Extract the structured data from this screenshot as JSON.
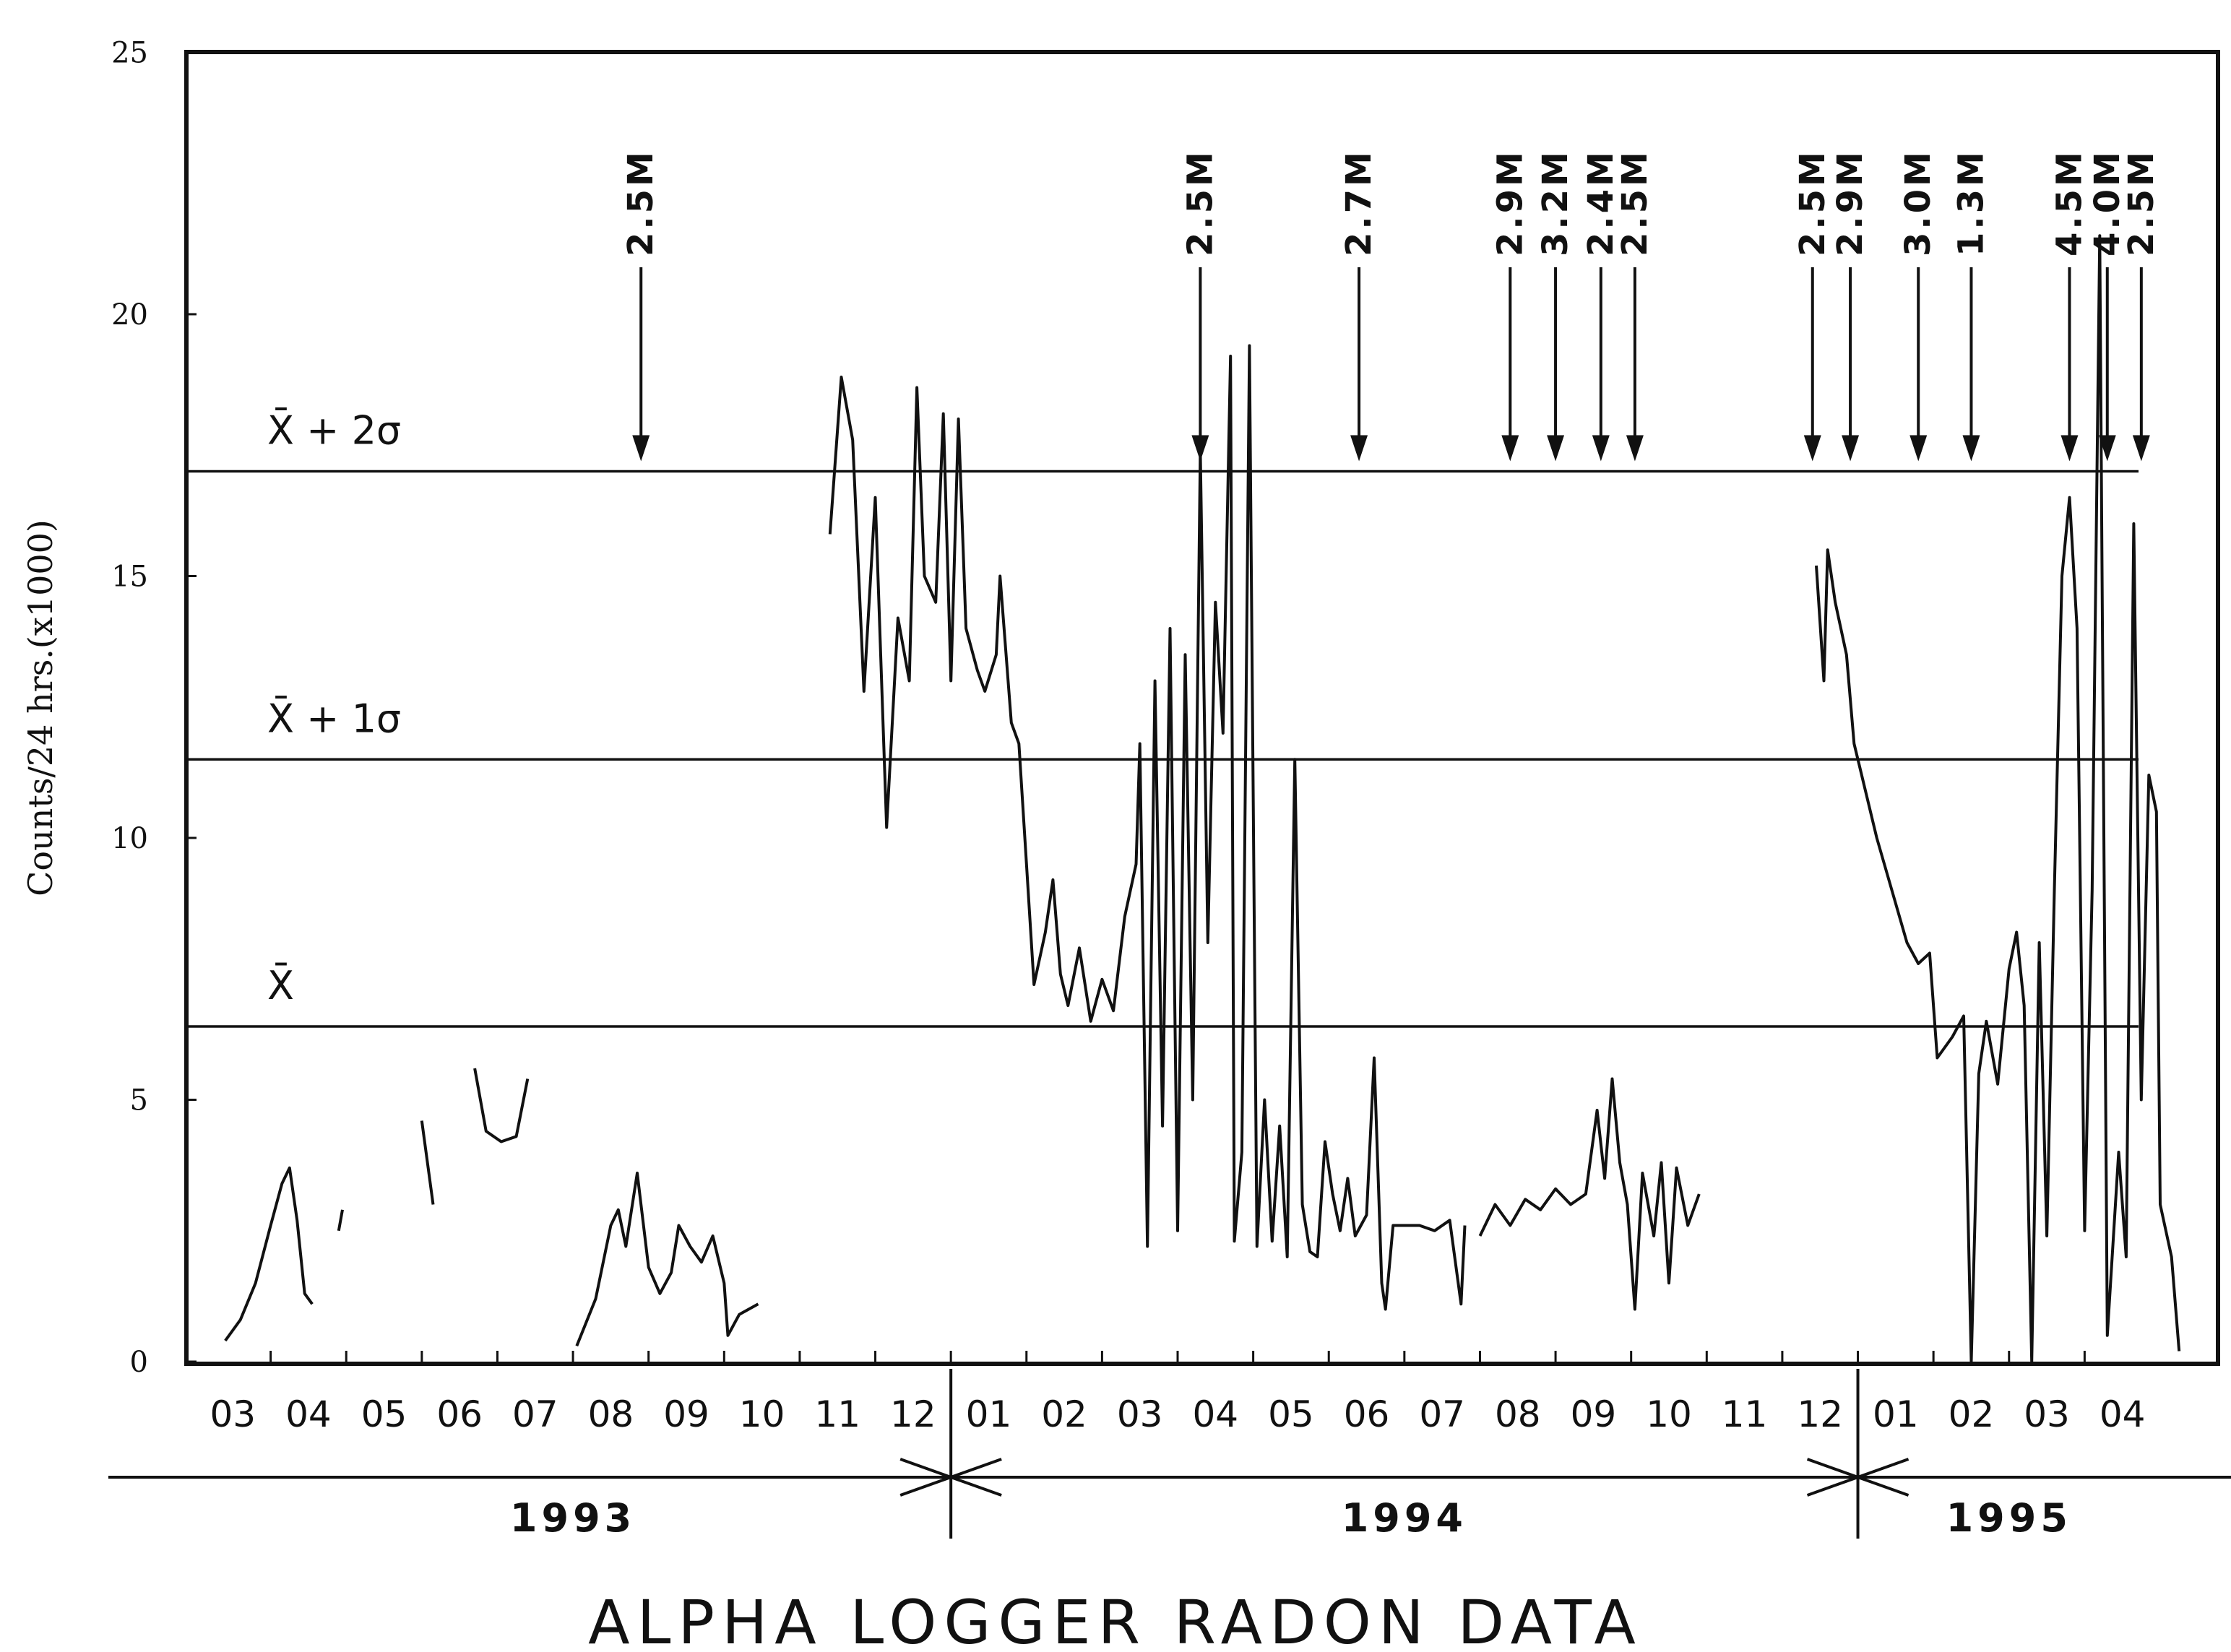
{
  "chart_data": {
    "type": "line",
    "title": "ALPHA LOGGER RADON DATA",
    "ylabel": "Counts/24 hrs.(x1000)",
    "ylim": [
      0,
      25
    ],
    "yticks": [
      {
        "value": 0,
        "label": "0"
      },
      {
        "value": 5,
        "label": "5"
      },
      {
        "value": 10,
        "label": "10"
      },
      {
        "value": 15,
        "label": "15"
      },
      {
        "value": 20,
        "label": "20"
      },
      {
        "value": 25,
        "label": "25"
      }
    ],
    "x_domain_months": [
      0,
      26
    ],
    "month_ticks": [
      {
        "label": "03",
        "pos": 0.5
      },
      {
        "label": "04",
        "pos": 1.5
      },
      {
        "label": "05",
        "pos": 2.5
      },
      {
        "label": "06",
        "pos": 3.5
      },
      {
        "label": "07",
        "pos": 4.5
      },
      {
        "label": "08",
        "pos": 5.5
      },
      {
        "label": "09",
        "pos": 6.5
      },
      {
        "label": "10",
        "pos": 7.5
      },
      {
        "label": "11",
        "pos": 8.5
      },
      {
        "label": "12",
        "pos": 9.5
      },
      {
        "label": "01",
        "pos": 10.5
      },
      {
        "label": "02",
        "pos": 11.5
      },
      {
        "label": "03",
        "pos": 12.5
      },
      {
        "label": "04",
        "pos": 13.5
      },
      {
        "label": "05",
        "pos": 14.5
      },
      {
        "label": "06",
        "pos": 15.5
      },
      {
        "label": "07",
        "pos": 16.5
      },
      {
        "label": "08",
        "pos": 17.5
      },
      {
        "label": "09",
        "pos": 18.5
      },
      {
        "label": "10",
        "pos": 19.5
      },
      {
        "label": "11",
        "pos": 20.5
      },
      {
        "label": "12",
        "pos": 21.5
      },
      {
        "label": "01",
        "pos": 22.5
      },
      {
        "label": "02",
        "pos": 23.5
      },
      {
        "label": "03",
        "pos": 24.5
      },
      {
        "label": "04",
        "pos": 25.5
      }
    ],
    "years": [
      {
        "label": "1993",
        "start": 0,
        "end": 10
      },
      {
        "label": "1994",
        "start": 10,
        "end": 22
      },
      {
        "label": "1995",
        "start": 22,
        "end": 26
      }
    ],
    "reference_lines": [
      {
        "label": "X̄ + 2σ",
        "value": 17.0
      },
      {
        "label": "X̄ + 1σ",
        "value": 11.5
      },
      {
        "label": "X̄",
        "value": 6.4
      }
    ],
    "events": [
      {
        "label": "2.5M",
        "x": 5.9
      },
      {
        "label": "2.5M",
        "x": 13.3
      },
      {
        "label": "2.7M",
        "x": 15.4
      },
      {
        "label": "2.9M",
        "x": 17.4
      },
      {
        "label": "3.2M",
        "x": 18.0
      },
      {
        "label": "2.4M",
        "x": 18.6
      },
      {
        "label": "2.5M",
        "x": 19.05
      },
      {
        "label": "2.5M",
        "x": 21.4
      },
      {
        "label": "2.9M",
        "x": 21.9
      },
      {
        "label": "3.0M",
        "x": 22.8
      },
      {
        "label": "1.3M",
        "x": 23.5
      },
      {
        "label": "4.5M",
        "x": 24.8
      },
      {
        "label": "4.0M",
        "x": 25.3
      },
      {
        "label": "2.5M",
        "x": 25.75
      }
    ],
    "series": [
      {
        "segments": [
          [
            [
              0.4,
              0.4
            ],
            [
              0.6,
              0.8
            ],
            [
              0.8,
              1.5
            ],
            [
              1.0,
              2.6
            ],
            [
              1.15,
              3.4
            ],
            [
              1.25,
              3.7
            ],
            [
              1.35,
              2.7
            ],
            [
              1.45,
              1.3
            ],
            [
              1.55,
              1.1
            ]
          ],
          [
            [
              1.9,
              2.5
            ],
            [
              1.95,
              2.9
            ]
          ],
          [
            [
              3.0,
              4.6
            ],
            [
              3.15,
              3.0
            ]
          ],
          [
            [
              3.7,
              5.6
            ],
            [
              3.85,
              4.4
            ],
            [
              4.05,
              4.2
            ],
            [
              4.25,
              4.3
            ],
            [
              4.4,
              5.4
            ]
          ],
          [
            [
              5.05,
              0.3
            ],
            [
              5.3,
              1.2
            ],
            [
              5.5,
              2.6
            ],
            [
              5.6,
              2.9
            ],
            [
              5.7,
              2.2
            ],
            [
              5.85,
              3.6
            ],
            [
              6.0,
              1.8
            ],
            [
              6.15,
              1.3
            ],
            [
              6.3,
              1.7
            ],
            [
              6.4,
              2.6
            ],
            [
              6.55,
              2.2
            ],
            [
              6.7,
              1.9
            ],
            [
              6.85,
              2.4
            ],
            [
              7.0,
              1.5
            ],
            [
              7.05,
              0.5
            ],
            [
              7.2,
              0.9
            ],
            [
              7.45,
              1.1
            ]
          ],
          [
            [
              8.4,
              15.8
            ],
            [
              8.55,
              18.8
            ],
            [
              8.7,
              17.6
            ],
            [
              8.85,
              12.8
            ],
            [
              9.0,
              16.5
            ],
            [
              9.15,
              10.2
            ],
            [
              9.3,
              14.2
            ],
            [
              9.45,
              13.0
            ],
            [
              9.55,
              18.6
            ],
            [
              9.65,
              15.0
            ],
            [
              9.8,
              14.5
            ],
            [
              9.9,
              18.1
            ],
            [
              10.0,
              13.0
            ],
            [
              10.1,
              18.0
            ],
            [
              10.2,
              14.0
            ],
            [
              10.35,
              13.2
            ],
            [
              10.45,
              12.8
            ],
            [
              10.6,
              13.5
            ],
            [
              10.65,
              15.0
            ],
            [
              10.8,
              12.2
            ],
            [
              10.9,
              11.8
            ],
            [
              11.0,
              9.5
            ],
            [
              11.1,
              7.2
            ],
            [
              11.25,
              8.2
            ],
            [
              11.35,
              9.2
            ],
            [
              11.45,
              7.4
            ],
            [
              11.55,
              6.8
            ],
            [
              11.7,
              7.9
            ],
            [
              11.85,
              6.5
            ],
            [
              12.0,
              7.3
            ],
            [
              12.15,
              6.7
            ],
            [
              12.3,
              8.5
            ],
            [
              12.45,
              9.5
            ],
            [
              12.5,
              11.8
            ],
            [
              12.6,
              2.2
            ],
            [
              12.7,
              13.0
            ],
            [
              12.8,
              4.5
            ],
            [
              12.9,
              14.0
            ],
            [
              13.0,
              2.5
            ],
            [
              13.1,
              13.5
            ],
            [
              13.2,
              5.0
            ],
            [
              13.3,
              17.4
            ],
            [
              13.4,
              8.0
            ],
            [
              13.5,
              14.5
            ],
            [
              13.6,
              12.0
            ],
            [
              13.7,
              19.2
            ],
            [
              13.75,
              2.3
            ],
            [
              13.85,
              4.0
            ],
            [
              13.95,
              19.4
            ],
            [
              14.05,
              2.2
            ],
            [
              14.15,
              5.0
            ],
            [
              14.25,
              2.3
            ],
            [
              14.35,
              4.5
            ],
            [
              14.45,
              2.0
            ],
            [
              14.55,
              11.5
            ],
            [
              14.65,
              3.0
            ],
            [
              14.75,
              2.1
            ],
            [
              14.85,
              2.0
            ],
            [
              14.95,
              4.2
            ],
            [
              15.05,
              3.2
            ],
            [
              15.15,
              2.5
            ],
            [
              15.25,
              3.5
            ],
            [
              15.35,
              2.4
            ],
            [
              15.5,
              2.8
            ],
            [
              15.6,
              5.8
            ],
            [
              15.7,
              1.5
            ],
            [
              15.75,
              1.0
            ],
            [
              15.85,
              2.6
            ],
            [
              16.0,
              2.6
            ],
            [
              16.2,
              2.6
            ],
            [
              16.4,
              2.5
            ],
            [
              16.6,
              2.7
            ],
            [
              16.75,
              1.1
            ],
            [
              16.8,
              2.6
            ]
          ],
          [
            [
              17.0,
              2.4
            ],
            [
              17.2,
              3.0
            ],
            [
              17.4,
              2.6
            ],
            [
              17.6,
              3.1
            ],
            [
              17.8,
              2.9
            ],
            [
              18.0,
              3.3
            ],
            [
              18.2,
              3.0
            ],
            [
              18.4,
              3.2
            ],
            [
              18.55,
              4.8
            ],
            [
              18.65,
              3.5
            ],
            [
              18.75,
              5.4
            ],
            [
              18.85,
              3.8
            ],
            [
              18.95,
              3.0
            ],
            [
              19.05,
              1.0
            ],
            [
              19.15,
              3.6
            ],
            [
              19.3,
              2.4
            ],
            [
              19.4,
              3.8
            ],
            [
              19.5,
              1.5
            ],
            [
              19.6,
              3.7
            ],
            [
              19.75,
              2.6
            ],
            [
              19.9,
              3.2
            ]
          ],
          [
            [
              21.45,
              15.2
            ],
            [
              21.55,
              13.0
            ],
            [
              21.6,
              15.5
            ],
            [
              21.7,
              14.5
            ],
            [
              21.85,
              13.5
            ],
            [
              21.95,
              11.8
            ],
            [
              22.05,
              11.2
            ],
            [
              22.25,
              10.0
            ],
            [
              22.45,
              9.0
            ],
            [
              22.65,
              8.0
            ],
            [
              22.8,
              7.6
            ],
            [
              22.95,
              7.8
            ],
            [
              23.05,
              5.8
            ],
            [
              23.25,
              6.2
            ],
            [
              23.4,
              6.6
            ],
            [
              23.5,
              0.0
            ],
            [
              23.6,
              5.5
            ],
            [
              23.7,
              6.5
            ],
            [
              23.85,
              5.3
            ],
            [
              24.0,
              7.5
            ],
            [
              24.1,
              8.2
            ],
            [
              24.2,
              6.8
            ],
            [
              24.3,
              0.0
            ],
            [
              24.4,
              8.0
            ],
            [
              24.5,
              2.4
            ],
            [
              24.6,
              9.0
            ],
            [
              24.7,
              15.0
            ],
            [
              24.8,
              16.5
            ],
            [
              24.9,
              14.0
            ],
            [
              25.0,
              2.5
            ],
            [
              25.1,
              9.0
            ],
            [
              25.2,
              21.5
            ],
            [
              25.3,
              0.5
            ],
            [
              25.45,
              4.0
            ],
            [
              25.55,
              2.0
            ],
            [
              25.65,
              16.0
            ],
            [
              25.75,
              5.0
            ],
            [
              25.85,
              11.2
            ],
            [
              25.95,
              10.5
            ],
            [
              26.0,
              3.0
            ],
            [
              26.15,
              2.0
            ],
            [
              26.25,
              0.2
            ]
          ]
        ]
      }
    ]
  }
}
